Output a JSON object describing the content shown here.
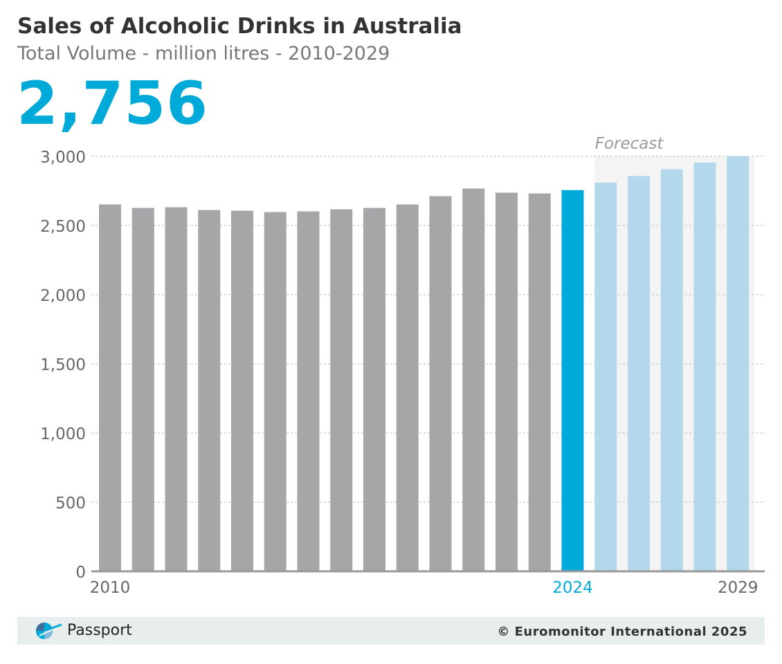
{
  "header": {
    "title": "Sales of Alcoholic Drinks in Australia",
    "subtitle": "Total Volume - million litres - 2010-2029",
    "headline_value": "2,756"
  },
  "footer": {
    "brand": "Passport",
    "copyright": "© Euromonitor International 2025"
  },
  "colors": {
    "historical": "#a5a6a8",
    "current": "#00aad8",
    "forecast": "#b3d8eb",
    "forecast_band": "#f4f4f4",
    "grid": "#bbbbbb",
    "axis_text": "#666666",
    "forecast_label": "#999999"
  },
  "chart_data": {
    "type": "bar",
    "categories": [
      "2010",
      "2011",
      "2012",
      "2013",
      "2014",
      "2015",
      "2016",
      "2017",
      "2018",
      "2019",
      "2020",
      "2021",
      "2022",
      "2023",
      "2024",
      "2025",
      "2026",
      "2027",
      "2028",
      "2029"
    ],
    "values": [
      2652,
      2627,
      2632,
      2612,
      2607,
      2597,
      2602,
      2617,
      2627,
      2652,
      2712,
      2767,
      2737,
      2732,
      2756,
      2810,
      2858,
      2907,
      2955,
      3002
    ],
    "current_year": "2024",
    "forecast_label": "Forecast",
    "forecast_start": "2025",
    "ylim": [
      0,
      3000
    ],
    "yticks": [
      0,
      500,
      1000,
      1500,
      2000,
      2500,
      3000
    ],
    "ytick_labels": [
      "0",
      "500",
      "1,000",
      "1,500",
      "2,000",
      "2,500",
      "3,000"
    ],
    "xtick_labels": [
      {
        "category": "2010",
        "label": "2010"
      },
      {
        "category": "2024",
        "label": "2024"
      },
      {
        "category": "2029",
        "label": "2029"
      }
    ],
    "grid": true
  }
}
